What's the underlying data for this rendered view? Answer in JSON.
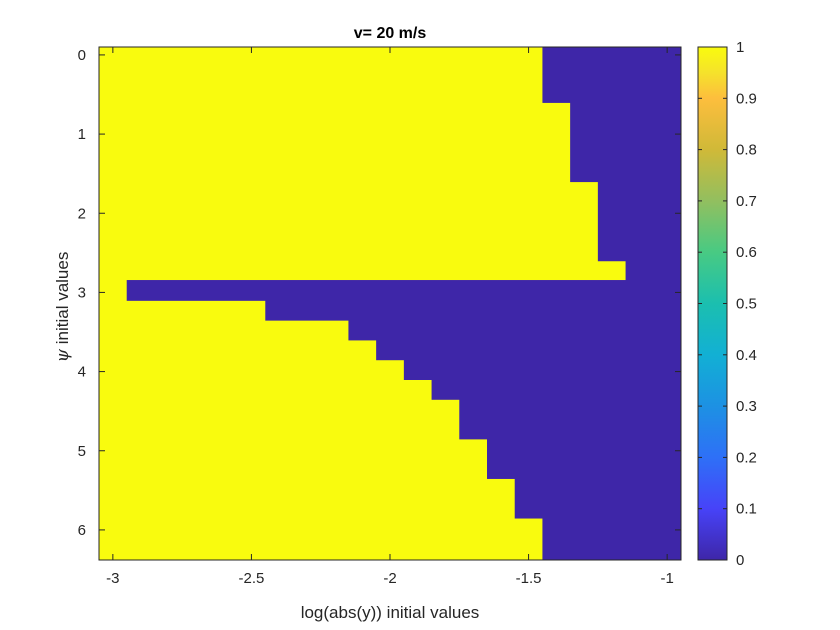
{
  "chart_data": {
    "type": "heatmap",
    "title": "v= 20 m/s",
    "xlabel": "log(abs(y)) initial values",
    "ylabel": "initial values",
    "ylabel_symbol": "ψ",
    "xlim": [
      -3.05,
      -0.95
    ],
    "ylim": [
      -0.1,
      6.38
    ],
    "y_reversed": true,
    "x_ticks": [
      -3,
      -2.5,
      -2,
      -1.5,
      -1
    ],
    "x_tick_labels": [
      "-3",
      "-2.5",
      "-2",
      "-1.5",
      "-1"
    ],
    "y_ticks": [
      0,
      1,
      2,
      3,
      4,
      5,
      6
    ],
    "y_tick_labels": [
      "0",
      "1",
      "2",
      "3",
      "4",
      "5",
      "6"
    ],
    "row_height": 0.25,
    "colormap": "parula",
    "color_low": "#3e26a8",
    "color_high": "#f9fb0e",
    "background_value": 1,
    "region_value_0": [
      {
        "y0": -0.1,
        "y1": 0.6,
        "x_start": -1.45
      },
      {
        "y0": 0.6,
        "y1": 1.6,
        "x_start": -1.35
      },
      {
        "y0": 1.6,
        "y1": 2.6,
        "x_start": -1.25
      },
      {
        "y0": 2.6,
        "y1": 2.85,
        "x_start": -1.15
      },
      {
        "y0": 2.85,
        "y1": 3.1,
        "x_start": -2.95
      },
      {
        "y0": 3.1,
        "y1": 3.35,
        "x_start": -2.45
      },
      {
        "y0": 3.35,
        "y1": 3.6,
        "x_start": -2.15
      },
      {
        "y0": 3.6,
        "y1": 3.85,
        "x_start": -2.05
      },
      {
        "y0": 3.85,
        "y1": 4.1,
        "x_start": -1.95
      },
      {
        "y0": 4.1,
        "y1": 4.35,
        "x_start": -1.85
      },
      {
        "y0": 4.35,
        "y1": 4.85,
        "x_start": -1.75
      },
      {
        "y0": 4.85,
        "y1": 5.35,
        "x_start": -1.65
      },
      {
        "y0": 5.35,
        "y1": 5.85,
        "x_start": -1.55
      },
      {
        "y0": 5.85,
        "y1": 6.38,
        "x_start": -1.45
      }
    ],
    "colorbar": {
      "min": 0,
      "max": 1,
      "ticks": [
        0,
        0.1,
        0.2,
        0.3,
        0.4,
        0.5,
        0.6,
        0.7,
        0.8,
        0.9,
        1
      ],
      "tick_labels": [
        "0",
        "0.1",
        "0.2",
        "0.3",
        "0.4",
        "0.5",
        "0.6",
        "0.7",
        "0.8",
        "0.9",
        "1"
      ]
    }
  }
}
